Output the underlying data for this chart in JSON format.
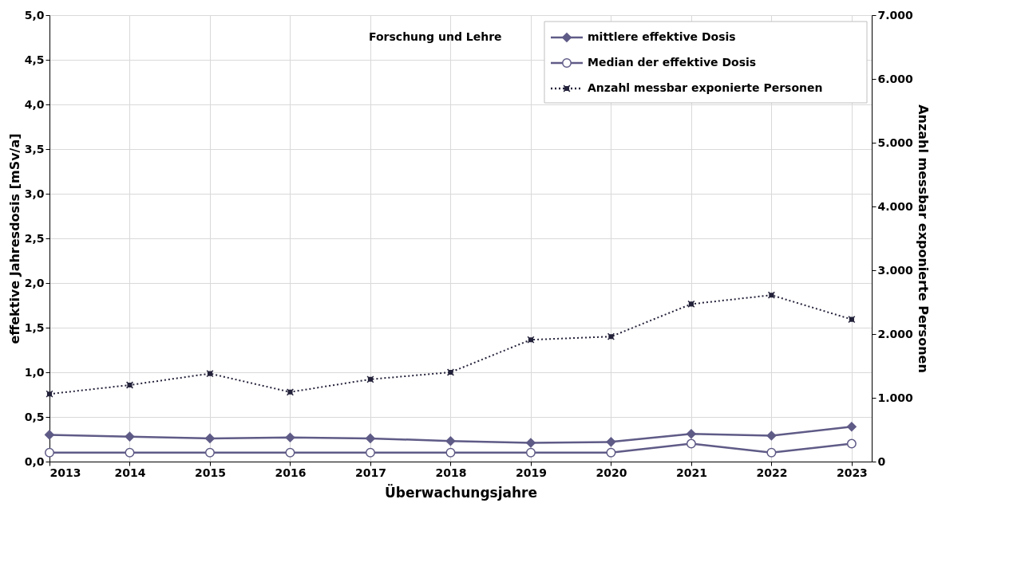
{
  "chart_data": {
    "type": "line",
    "x": [
      2013,
      2014,
      2015,
      2016,
      2017,
      2018,
      2019,
      2020,
      2021,
      2022,
      2023
    ],
    "series": [
      {
        "name": "mittlere effektive Dosis",
        "color": "#5f5b87",
        "marker": "diamond",
        "line_style": "solid",
        "values": [
          0.3,
          0.28,
          0.26,
          0.27,
          0.26,
          0.23,
          0.21,
          0.22,
          0.31,
          0.29,
          0.39
        ]
      },
      {
        "name": "Median der effektive Dosis",
        "color": "#5f5b87",
        "marker": "circle",
        "line_style": "solid",
        "values": [
          0.1,
          0.1,
          0.1,
          0.1,
          0.1,
          0.1,
          0.1,
          0.1,
          0.2,
          0.1,
          0.2
        ]
      },
      {
        "name": "Anzahl messbar exponierte Personen",
        "color": "#23223a",
        "marker": "cross",
        "line_style": "dotted",
        "axis": "y2",
        "values": [
          1060,
          1200,
          1380,
          1090,
          1290,
          1400,
          1910,
          1960,
          2470,
          2610,
          2230
        ]
      }
    ],
    "xlabel": "Überwachungsjahre",
    "ylabel": "effektive Jahresdosis [mSv/a]",
    "y2label": "Anzahl messbar exponierte Personen",
    "annotations": [
      "Forschung und Lehre"
    ],
    "xlim": [
      2013,
      2023.25
    ],
    "xticks": [
      2013,
      2014,
      2015,
      2016,
      2017,
      2018,
      2019,
      2020,
      2021,
      2022,
      2023
    ],
    "ylim": [
      0,
      5
    ],
    "yticks": [
      {
        "value": 0,
        "label": "0,0"
      },
      {
        "value": 0.5,
        "label": "0,5"
      },
      {
        "value": 1,
        "label": "1,0"
      },
      {
        "value": 1.5,
        "label": "1,5"
      },
      {
        "value": 2,
        "label": "2,0"
      },
      {
        "value": 2.5,
        "label": "2,5"
      },
      {
        "value": 3,
        "label": "3,0"
      },
      {
        "value": 3.5,
        "label": "3,5"
      },
      {
        "value": 4,
        "label": "4,0"
      },
      {
        "value": 4.5,
        "label": "4,5"
      },
      {
        "value": 5,
        "label": "5,0"
      }
    ],
    "y2lim": [
      0,
      7000
    ],
    "y2ticks": [
      0,
      {
        "value": 1000,
        "label": "1.000"
      },
      {
        "value": 2000,
        "label": "2.000"
      },
      {
        "value": 3000,
        "label": "3.000"
      },
      {
        "value": 4000,
        "label": "4.000"
      },
      {
        "value": 5000,
        "label": "5.000"
      },
      {
        "value": 6000,
        "label": "6.000"
      },
      {
        "value": 7000,
        "label": "7.000"
      }
    ],
    "grid": true,
    "legend": "top right"
  }
}
